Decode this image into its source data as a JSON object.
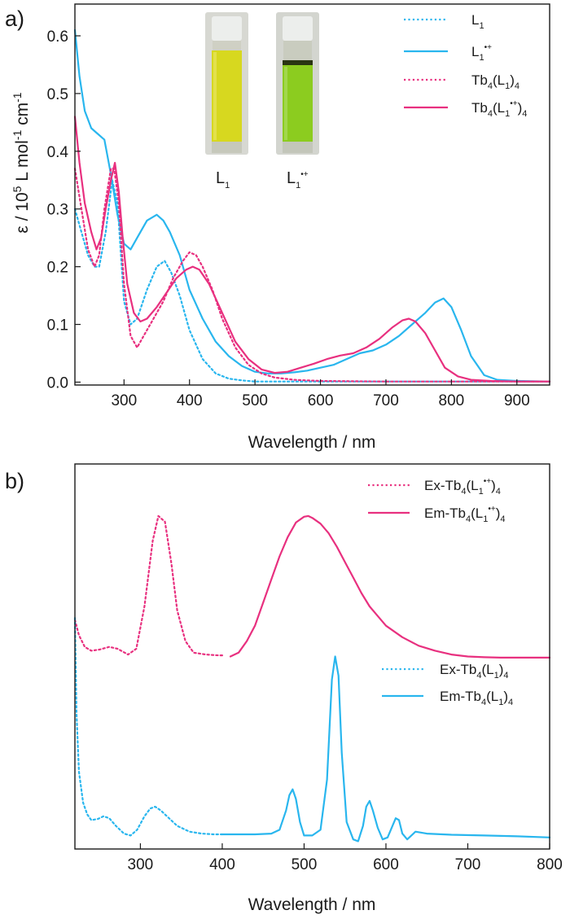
{
  "panel_labels": [
    "a)",
    "b)"
  ],
  "colors": {
    "cyan": "#29b6ee",
    "magenta": "#e8307f",
    "axis": "#1a1a1a"
  },
  "chart_data": [
    {
      "type": "line",
      "panel": "a)",
      "xlabel": "Wavelength / nm",
      "ylabel": "ε / 10⁵ L mol⁻¹ cm⁻¹",
      "xlim": [
        225,
        950
      ],
      "ylim": [
        -0.005,
        0.655
      ],
      "xticks": [
        300,
        400,
        500,
        600,
        700,
        800,
        900
      ],
      "yticks": [
        0.0,
        0.1,
        0.2,
        0.3,
        0.4,
        0.5,
        0.6
      ],
      "ytick_labels": [
        "0.0",
        "0.1",
        "0.2",
        "0.3",
        "0.4",
        "0.5",
        "0.6"
      ],
      "legend_position": "top-right",
      "inset_photo": {
        "vial_labels": [
          "L1",
          "L1•+"
        ],
        "vial_colors": [
          "#d6d51c",
          "#8ccb1e"
        ]
      },
      "series": [
        {
          "name": "L1",
          "color": "#29b6ee",
          "style": "dotted",
          "x": [
            225,
            235,
            245,
            255,
            262,
            272,
            282,
            290,
            300,
            310,
            320,
            335,
            350,
            362,
            372,
            385,
            400,
            420,
            440,
            460,
            480,
            500,
            550,
            600,
            700,
            800,
            950
          ],
          "y": [
            0.3,
            0.26,
            0.22,
            0.2,
            0.2,
            0.26,
            0.35,
            0.31,
            0.14,
            0.1,
            0.11,
            0.16,
            0.2,
            0.21,
            0.19,
            0.15,
            0.09,
            0.04,
            0.015,
            0.006,
            0.003,
            0.001,
            0.001,
            0.001,
            0.001,
            0.001,
            0.001
          ]
        },
        {
          "name": "L1•+",
          "color": "#29b6ee",
          "style": "solid",
          "x": [
            225,
            232,
            240,
            250,
            260,
            270,
            280,
            290,
            300,
            310,
            320,
            335,
            350,
            360,
            370,
            385,
            400,
            420,
            440,
            460,
            480,
            500,
            520,
            540,
            560,
            580,
            600,
            620,
            640,
            660,
            680,
            700,
            720,
            740,
            760,
            775,
            788,
            800,
            815,
            830,
            850,
            870,
            900,
            950
          ],
          "y": [
            0.61,
            0.53,
            0.47,
            0.44,
            0.43,
            0.42,
            0.36,
            0.29,
            0.24,
            0.23,
            0.25,
            0.28,
            0.29,
            0.28,
            0.26,
            0.22,
            0.16,
            0.11,
            0.07,
            0.045,
            0.028,
            0.018,
            0.015,
            0.015,
            0.017,
            0.02,
            0.025,
            0.03,
            0.04,
            0.05,
            0.055,
            0.065,
            0.08,
            0.1,
            0.12,
            0.138,
            0.145,
            0.13,
            0.09,
            0.045,
            0.012,
            0.004,
            0.002,
            0.001
          ]
        },
        {
          "name": "Tb4(L1)4",
          "color": "#e8307f",
          "style": "dotted",
          "x": [
            225,
            235,
            245,
            255,
            262,
            270,
            280,
            285,
            292,
            300,
            310,
            320,
            330,
            345,
            360,
            375,
            390,
            400,
            410,
            420,
            435,
            450,
            470,
            490,
            510,
            530,
            560,
            600,
            700,
            800,
            950
          ],
          "y": [
            0.37,
            0.3,
            0.23,
            0.2,
            0.22,
            0.3,
            0.37,
            0.37,
            0.31,
            0.17,
            0.08,
            0.06,
            0.08,
            0.11,
            0.14,
            0.18,
            0.21,
            0.225,
            0.22,
            0.2,
            0.16,
            0.11,
            0.06,
            0.03,
            0.015,
            0.008,
            0.004,
            0.002,
            0.001,
            0.001,
            0.001
          ]
        },
        {
          "name": "Tb4(L1•+)4",
          "color": "#e8307f",
          "style": "solid",
          "x": [
            225,
            232,
            240,
            250,
            258,
            265,
            272,
            280,
            286,
            292,
            298,
            305,
            315,
            325,
            335,
            350,
            365,
            380,
            395,
            405,
            415,
            430,
            450,
            470,
            490,
            510,
            530,
            550,
            570,
            590,
            610,
            630,
            650,
            670,
            690,
            710,
            725,
            735,
            745,
            760,
            775,
            790,
            810,
            830,
            860,
            900,
            950
          ],
          "y": [
            0.46,
            0.38,
            0.31,
            0.26,
            0.23,
            0.25,
            0.3,
            0.35,
            0.38,
            0.33,
            0.25,
            0.17,
            0.12,
            0.105,
            0.11,
            0.13,
            0.155,
            0.18,
            0.195,
            0.2,
            0.195,
            0.17,
            0.12,
            0.07,
            0.04,
            0.022,
            0.016,
            0.018,
            0.025,
            0.032,
            0.04,
            0.046,
            0.05,
            0.06,
            0.075,
            0.095,
            0.107,
            0.11,
            0.105,
            0.085,
            0.055,
            0.025,
            0.01,
            0.004,
            0.002,
            0.001,
            0.001
          ]
        }
      ]
    },
    {
      "type": "line",
      "panel": "b)",
      "xlabel": "Wavelength / nm",
      "ylabel": "",
      "xlim": [
        220,
        800
      ],
      "ylim": [
        0,
        1
      ],
      "xticks": [
        300,
        400,
        500,
        600,
        700,
        800
      ],
      "yticks": [],
      "legend_position": "top-right",
      "series": [
        {
          "name": "Ex-Tb4(L1•+)4",
          "color": "#e8307f",
          "style": "dotted",
          "x": [
            220,
            225,
            232,
            240,
            250,
            262,
            272,
            285,
            295,
            305,
            315,
            322,
            330,
            338,
            345,
            355,
            365,
            380,
            395,
            400
          ],
          "y": [
            0.595,
            0.555,
            0.525,
            0.515,
            0.518,
            0.525,
            0.52,
            0.505,
            0.52,
            0.63,
            0.8,
            0.865,
            0.85,
            0.74,
            0.62,
            0.54,
            0.51,
            0.505,
            0.503,
            0.503
          ]
        },
        {
          "name": "Em-Tb4(L1•+)4",
          "color": "#e8307f",
          "style": "solid",
          "x": [
            410,
            420,
            430,
            440,
            450,
            460,
            470,
            480,
            490,
            500,
            505,
            510,
            520,
            530,
            540,
            550,
            560,
            570,
            580,
            590,
            600,
            620,
            640,
            660,
            680,
            700,
            720,
            740,
            760,
            780,
            800
          ],
          "y": [
            0.5,
            0.51,
            0.54,
            0.58,
            0.64,
            0.7,
            0.76,
            0.81,
            0.848,
            0.863,
            0.865,
            0.86,
            0.845,
            0.82,
            0.785,
            0.745,
            0.705,
            0.665,
            0.63,
            0.605,
            0.58,
            0.55,
            0.528,
            0.515,
            0.505,
            0.5,
            0.498,
            0.497,
            0.497,
            0.497,
            0.497
          ]
        },
        {
          "name": "Ex-Tb4(L1)4",
          "color": "#29b6ee",
          "style": "dotted",
          "x": [
            220,
            222,
            225,
            230,
            235,
            240,
            248,
            255,
            262,
            270,
            280,
            288,
            296,
            305,
            312,
            318,
            325,
            335,
            345,
            360,
            375,
            390,
            400
          ],
          "y": [
            0.6,
            0.35,
            0.2,
            0.12,
            0.09,
            0.075,
            0.078,
            0.085,
            0.08,
            0.06,
            0.04,
            0.035,
            0.05,
            0.085,
            0.105,
            0.11,
            0.1,
            0.08,
            0.06,
            0.045,
            0.04,
            0.038,
            0.038
          ]
        },
        {
          "name": "Em-Tb4(L1)4",
          "color": "#29b6ee",
          "style": "solid",
          "x": [
            400,
            420,
            440,
            460,
            470,
            478,
            482,
            486,
            490,
            495,
            500,
            510,
            520,
            528,
            534,
            538,
            542,
            546,
            552,
            560,
            566,
            572,
            576,
            580,
            584,
            590,
            596,
            602,
            608,
            612,
            616,
            620,
            626,
            636,
            650,
            680,
            720,
            760,
            800
          ],
          "y": [
            0.038,
            0.038,
            0.038,
            0.04,
            0.05,
            0.1,
            0.14,
            0.155,
            0.13,
            0.07,
            0.035,
            0.035,
            0.05,
            0.18,
            0.44,
            0.5,
            0.45,
            0.25,
            0.07,
            0.025,
            0.02,
            0.06,
            0.11,
            0.125,
            0.1,
            0.055,
            0.025,
            0.03,
            0.06,
            0.08,
            0.075,
            0.04,
            0.025,
            0.045,
            0.04,
            0.037,
            0.035,
            0.033,
            0.03
          ]
        }
      ]
    }
  ]
}
